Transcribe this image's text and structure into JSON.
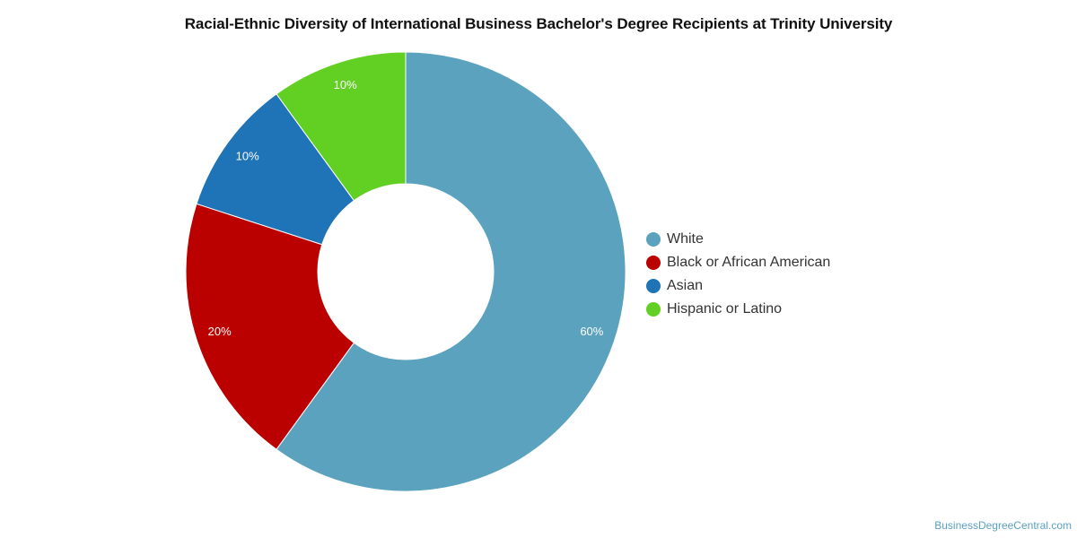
{
  "title": "Racial-Ethnic Diversity of International Business Bachelor's Degree Recipients at Trinity University",
  "source": "BusinessDegreeCentral.com",
  "chart_data": {
    "type": "pie",
    "donut": true,
    "title": "Racial-Ethnic Diversity of International Business Bachelor's Degree Recipients at Trinity University",
    "legend_position": "right",
    "slices": [
      {
        "name": "White",
        "value": 60,
        "label": "60%",
        "color": "#5ba2bf"
      },
      {
        "name": "Black or African American",
        "value": 20,
        "label": "20%",
        "color": "#bb0000"
      },
      {
        "name": "Asian",
        "value": 10,
        "label": "10%",
        "color": "#1f73b7"
      },
      {
        "name": "Hispanic or Latino",
        "value": 10,
        "label": "10%",
        "color": "#62cf23"
      }
    ]
  }
}
